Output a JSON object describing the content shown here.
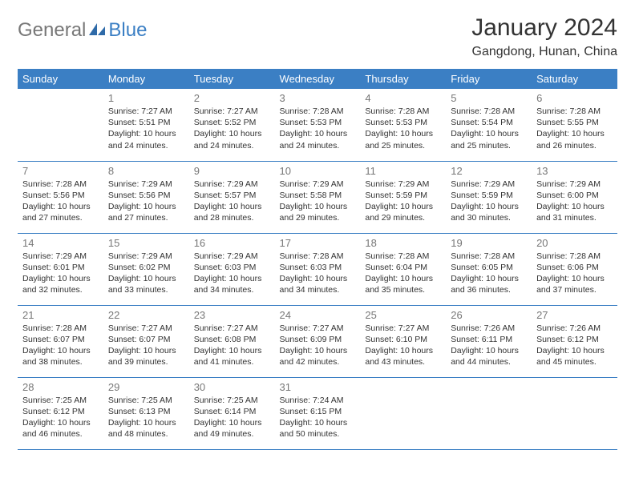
{
  "brand": {
    "part1": "General",
    "part2": "Blue"
  },
  "title": "January 2024",
  "location": "Gangdong, Hunan, China",
  "colors": {
    "header_bg": "#3b7fc4",
    "header_text": "#ffffff",
    "daynum": "#777777",
    "text": "#333333",
    "row_border": "#3b7fc4",
    "background": "#ffffff"
  },
  "fonts": {
    "title_size": 30,
    "location_size": 16,
    "header_cell_size": 13,
    "daynum_size": 13,
    "body_size": 10.5
  },
  "weekdays": [
    "Sunday",
    "Monday",
    "Tuesday",
    "Wednesday",
    "Thursday",
    "Friday",
    "Saturday"
  ],
  "weeks": [
    [
      null,
      {
        "n": "1",
        "sr": "7:27 AM",
        "ss": "5:51 PM",
        "dl": "10 hours and 24 minutes."
      },
      {
        "n": "2",
        "sr": "7:27 AM",
        "ss": "5:52 PM",
        "dl": "10 hours and 24 minutes."
      },
      {
        "n": "3",
        "sr": "7:28 AM",
        "ss": "5:53 PM",
        "dl": "10 hours and 24 minutes."
      },
      {
        "n": "4",
        "sr": "7:28 AM",
        "ss": "5:53 PM",
        "dl": "10 hours and 25 minutes."
      },
      {
        "n": "5",
        "sr": "7:28 AM",
        "ss": "5:54 PM",
        "dl": "10 hours and 25 minutes."
      },
      {
        "n": "6",
        "sr": "7:28 AM",
        "ss": "5:55 PM",
        "dl": "10 hours and 26 minutes."
      }
    ],
    [
      {
        "n": "7",
        "sr": "7:28 AM",
        "ss": "5:56 PM",
        "dl": "10 hours and 27 minutes."
      },
      {
        "n": "8",
        "sr": "7:29 AM",
        "ss": "5:56 PM",
        "dl": "10 hours and 27 minutes."
      },
      {
        "n": "9",
        "sr": "7:29 AM",
        "ss": "5:57 PM",
        "dl": "10 hours and 28 minutes."
      },
      {
        "n": "10",
        "sr": "7:29 AM",
        "ss": "5:58 PM",
        "dl": "10 hours and 29 minutes."
      },
      {
        "n": "11",
        "sr": "7:29 AM",
        "ss": "5:59 PM",
        "dl": "10 hours and 29 minutes."
      },
      {
        "n": "12",
        "sr": "7:29 AM",
        "ss": "5:59 PM",
        "dl": "10 hours and 30 minutes."
      },
      {
        "n": "13",
        "sr": "7:29 AM",
        "ss": "6:00 PM",
        "dl": "10 hours and 31 minutes."
      }
    ],
    [
      {
        "n": "14",
        "sr": "7:29 AM",
        "ss": "6:01 PM",
        "dl": "10 hours and 32 minutes."
      },
      {
        "n": "15",
        "sr": "7:29 AM",
        "ss": "6:02 PM",
        "dl": "10 hours and 33 minutes."
      },
      {
        "n": "16",
        "sr": "7:29 AM",
        "ss": "6:03 PM",
        "dl": "10 hours and 34 minutes."
      },
      {
        "n": "17",
        "sr": "7:28 AM",
        "ss": "6:03 PM",
        "dl": "10 hours and 34 minutes."
      },
      {
        "n": "18",
        "sr": "7:28 AM",
        "ss": "6:04 PM",
        "dl": "10 hours and 35 minutes."
      },
      {
        "n": "19",
        "sr": "7:28 AM",
        "ss": "6:05 PM",
        "dl": "10 hours and 36 minutes."
      },
      {
        "n": "20",
        "sr": "7:28 AM",
        "ss": "6:06 PM",
        "dl": "10 hours and 37 minutes."
      }
    ],
    [
      {
        "n": "21",
        "sr": "7:28 AM",
        "ss": "6:07 PM",
        "dl": "10 hours and 38 minutes."
      },
      {
        "n": "22",
        "sr": "7:27 AM",
        "ss": "6:07 PM",
        "dl": "10 hours and 39 minutes."
      },
      {
        "n": "23",
        "sr": "7:27 AM",
        "ss": "6:08 PM",
        "dl": "10 hours and 41 minutes."
      },
      {
        "n": "24",
        "sr": "7:27 AM",
        "ss": "6:09 PM",
        "dl": "10 hours and 42 minutes."
      },
      {
        "n": "25",
        "sr": "7:27 AM",
        "ss": "6:10 PM",
        "dl": "10 hours and 43 minutes."
      },
      {
        "n": "26",
        "sr": "7:26 AM",
        "ss": "6:11 PM",
        "dl": "10 hours and 44 minutes."
      },
      {
        "n": "27",
        "sr": "7:26 AM",
        "ss": "6:12 PM",
        "dl": "10 hours and 45 minutes."
      }
    ],
    [
      {
        "n": "28",
        "sr": "7:25 AM",
        "ss": "6:12 PM",
        "dl": "10 hours and 46 minutes."
      },
      {
        "n": "29",
        "sr": "7:25 AM",
        "ss": "6:13 PM",
        "dl": "10 hours and 48 minutes."
      },
      {
        "n": "30",
        "sr": "7:25 AM",
        "ss": "6:14 PM",
        "dl": "10 hours and 49 minutes."
      },
      {
        "n": "31",
        "sr": "7:24 AM",
        "ss": "6:15 PM",
        "dl": "10 hours and 50 minutes."
      },
      null,
      null,
      null
    ]
  ]
}
